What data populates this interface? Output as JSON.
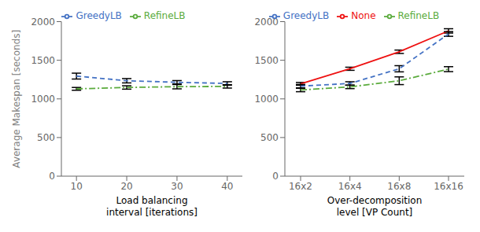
{
  "chart_data": [
    {
      "type": "line",
      "x": [
        10,
        20,
        30,
        40
      ],
      "xlim": [
        7,
        43
      ],
      "xticks": [
        10,
        20,
        30,
        40
      ],
      "xlabel": "Load balancing\ninterval [iterations]",
      "ylabel": "Average Makespan [seconds]",
      "ylim": [
        0,
        2000
      ],
      "yticks": [
        0,
        500,
        1000,
        1500,
        2000
      ],
      "grid": false,
      "legend": "top",
      "series": [
        {
          "name": "GreedyLB",
          "color": "#4472C4",
          "line_style": "dashed",
          "values": [
            1295,
            1235,
            1215,
            1200
          ],
          "errors": [
            38,
            28,
            22,
            22
          ]
        },
        {
          "name": "RefineLB",
          "color": "#5AAB3C",
          "line_style": "dashdot",
          "values": [
            1130,
            1148,
            1158,
            1162
          ],
          "errors": [
            18,
            22,
            28,
            22
          ]
        }
      ]
    },
    {
      "type": "line",
      "categories": [
        "16x2",
        "16x4",
        "16x8",
        "16x16"
      ],
      "xlabel": "Over-decomposition\nlevel [VP Count]",
      "ylim": [
        0,
        2000
      ],
      "yticks": [
        0,
        500,
        1000,
        1500,
        2000
      ],
      "grid": false,
      "legend": "top",
      "series": [
        {
          "name": "None",
          "color": "#EE1111",
          "line_style": "solid",
          "values": [
            1195,
            1390,
            1610,
            1880
          ],
          "errors": [
            18,
            20,
            22,
            28
          ]
        },
        {
          "name": "GreedyLB",
          "color": "#4472C4",
          "line_style": "dashed",
          "values": [
            1165,
            1200,
            1390,
            1840
          ],
          "errors": [
            22,
            22,
            40,
            30
          ]
        },
        {
          "name": "RefineLB",
          "color": "#5AAB3C",
          "line_style": "dashdot",
          "values": [
            1115,
            1155,
            1235,
            1385
          ],
          "errors": [
            22,
            22,
            50,
            32
          ]
        }
      ]
    }
  ]
}
